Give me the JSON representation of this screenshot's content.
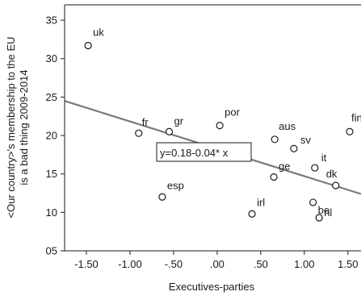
{
  "chart_data": {
    "type": "scatter",
    "xlabel": "Executives-parties",
    "ylabel_line1": "<Our country>'s membership to the EU",
    "ylabel_line2": "is a bad thing 2009-2014",
    "xlim": [
      -1.75,
      1.65
    ],
    "ylim": [
      5,
      37
    ],
    "x_ticks": [
      {
        "value": -1.5,
        "label": "-1.50"
      },
      {
        "value": -1.0,
        "label": "-1.00"
      },
      {
        "value": -0.5,
        "label": "-.50"
      },
      {
        "value": 0.0,
        "label": ".00"
      },
      {
        "value": 0.5,
        "label": ".50"
      },
      {
        "value": 1.0,
        "label": "1.00"
      },
      {
        "value": 1.5,
        "label": "1.50"
      }
    ],
    "y_ticks": [
      {
        "value": 5,
        "label": "05"
      },
      {
        "value": 10,
        "label": "10"
      },
      {
        "value": 15,
        "label": "15"
      },
      {
        "value": 20,
        "label": "20"
      },
      {
        "value": 25,
        "label": "25"
      },
      {
        "value": 30,
        "label": "30"
      },
      {
        "value": 35,
        "label": "35"
      }
    ],
    "points": [
      {
        "label": "uk",
        "x": -1.48,
        "y": 31.7
      },
      {
        "label": "fr",
        "x": -0.9,
        "y": 20.3
      },
      {
        "label": "gr",
        "x": -0.55,
        "y": 20.5
      },
      {
        "label": "esp",
        "x": -0.63,
        "y": 12.0
      },
      {
        "label": "por",
        "x": 0.03,
        "y": 21.3
      },
      {
        "label": "irl",
        "x": 0.4,
        "y": 9.8
      },
      {
        "label": "aus",
        "x": 0.66,
        "y": 19.5
      },
      {
        "label": "ge",
        "x": 0.65,
        "y": 14.6
      },
      {
        "label": "sv",
        "x": 0.88,
        "y": 18.3
      },
      {
        "label": "it",
        "x": 1.12,
        "y": 15.8
      },
      {
        "label": "be",
        "x": 1.1,
        "y": 11.3
      },
      {
        "label": "nl",
        "x": 1.17,
        "y": 9.3
      },
      {
        "label": "dk",
        "x": 1.36,
        "y": 13.5
      },
      {
        "label": "fin",
        "x": 1.52,
        "y": 20.5
      }
    ],
    "regression": {
      "label": "y=0.18-0.04* x",
      "x_start": -1.75,
      "y_start": 24.5,
      "x_end": 1.65,
      "y_end": 12.4
    },
    "colors": {
      "line": "#7a7a7a",
      "frame": "#1a1a1a",
      "marker": "#1a1a1a"
    }
  }
}
